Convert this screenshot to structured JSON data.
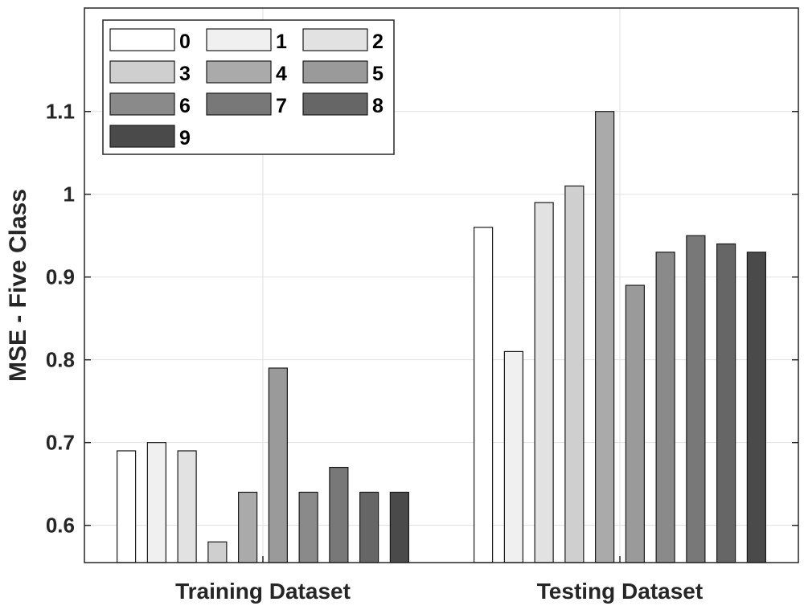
{
  "chart_data": {
    "type": "bar",
    "title": "",
    "xlabel": "",
    "ylabel": "MSE - Five Class",
    "ylim": [
      0.555,
      1.225
    ],
    "yticks": [
      0.6,
      0.7,
      0.8,
      0.9,
      1,
      1.1
    ],
    "ytick_labels": [
      "0.6",
      "0.7",
      "0.8",
      "0.9",
      "1",
      "1.1"
    ],
    "grid": true,
    "legend": {
      "placement": "top-left",
      "columns": 3
    },
    "categories": [
      "Training Dataset",
      "Testing Dataset"
    ],
    "series": [
      {
        "name": "0",
        "values": [
          0.69,
          0.96
        ],
        "color": "#ffffff"
      },
      {
        "name": "1",
        "values": [
          0.7,
          0.81
        ],
        "color": "#f0f0f0"
      },
      {
        "name": "2",
        "values": [
          0.69,
          0.99
        ],
        "color": "#e2e2e2"
      },
      {
        "name": "3",
        "values": [
          0.58,
          1.01
        ],
        "color": "#cfcfcf"
      },
      {
        "name": "4",
        "values": [
          0.64,
          1.1
        ],
        "color": "#aaaaaa"
      },
      {
        "name": "5",
        "values": [
          0.79,
          0.89
        ],
        "color": "#9a9a9a"
      },
      {
        "name": "6",
        "values": [
          0.64,
          0.93
        ],
        "color": "#8a8a8a"
      },
      {
        "name": "7",
        "values": [
          0.67,
          0.95
        ],
        "color": "#787878"
      },
      {
        "name": "8",
        "values": [
          0.64,
          0.94
        ],
        "color": "#666666"
      },
      {
        "name": "9",
        "values": [
          0.64,
          0.93
        ],
        "color": "#4a4a4a"
      }
    ]
  }
}
